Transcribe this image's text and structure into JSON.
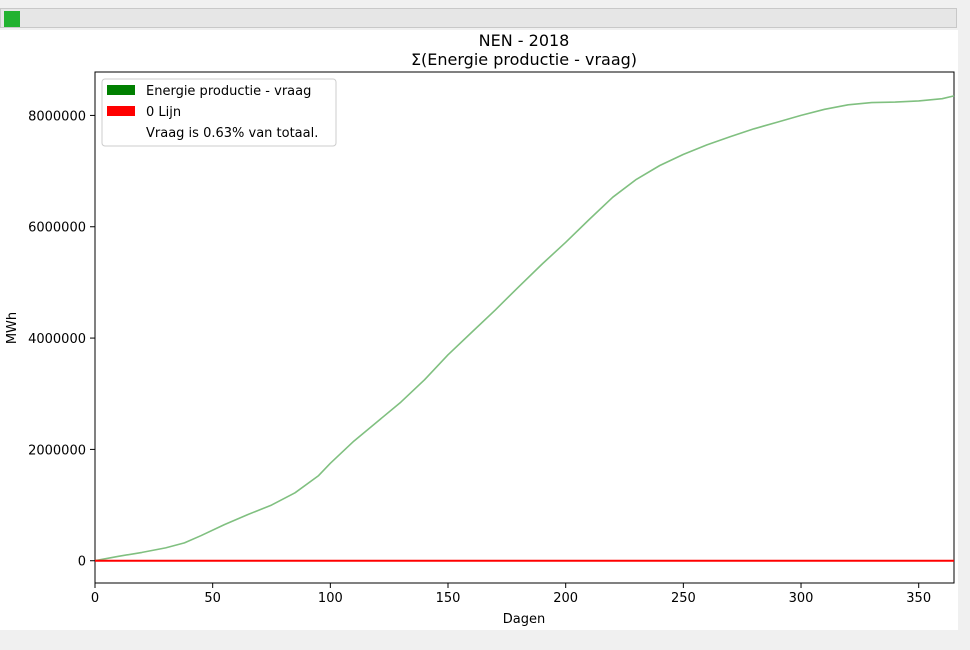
{
  "window": {
    "toolbar_icon": "app-status-square",
    "toolbar_color": "#22b230"
  },
  "chart_data": {
    "type": "line",
    "title": "NEN - 2018",
    "subtitle": "Σ(Energie productie - vraag)",
    "xlabel": "Dagen",
    "ylabel": "MWh",
    "xlim": [
      0,
      365
    ],
    "ylim": [
      -400000,
      8780000
    ],
    "x_ticks": [
      0,
      50,
      100,
      150,
      200,
      250,
      300,
      350
    ],
    "x_tick_labels": [
      "0",
      "50",
      "100",
      "150",
      "200",
      "250",
      "300",
      "350"
    ],
    "y_ticks": [
      0,
      2000000,
      4000000,
      6000000,
      8000000
    ],
    "y_tick_labels": [
      "0",
      "2000000",
      "4000000",
      "6000000",
      "8000000"
    ],
    "grid": false,
    "legend_position": "top-left",
    "legend": [
      {
        "label": "Energie productie - vraag",
        "color": "#008000"
      },
      {
        "label": "0 Lijn",
        "color": "#ff0000"
      },
      {
        "label": "Vraag is 0.63% van totaal.",
        "color": null
      }
    ],
    "series": [
      {
        "name": "Energie productie - vraag",
        "color": "#80c080",
        "x": [
          0,
          10,
          20,
          30,
          38,
          45,
          55,
          65,
          75,
          85,
          95,
          100,
          110,
          120,
          130,
          140,
          150,
          160,
          170,
          180,
          190,
          200,
          210,
          220,
          230,
          240,
          250,
          260,
          270,
          280,
          290,
          300,
          310,
          320,
          330,
          340,
          350,
          360,
          365
        ],
        "y": [
          0,
          80000,
          150000,
          230000,
          320000,
          450000,
          650000,
          830000,
          1000000,
          1220000,
          1530000,
          1750000,
          2150000,
          2500000,
          2850000,
          3250000,
          3700000,
          4100000,
          4500000,
          4920000,
          5330000,
          5720000,
          6130000,
          6530000,
          6850000,
          7100000,
          7300000,
          7470000,
          7620000,
          7760000,
          7880000,
          8000000,
          8110000,
          8190000,
          8230000,
          8240000,
          8260000,
          8300000,
          8350000
        ]
      },
      {
        "name": "0 Lijn",
        "color": "#ff0000",
        "x": [
          0,
          365
        ],
        "y": [
          0,
          0
        ]
      }
    ]
  }
}
